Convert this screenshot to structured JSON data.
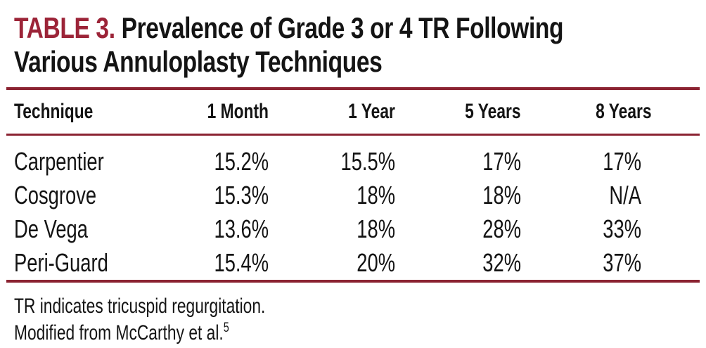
{
  "colors": {
    "accent_text": "#9c2438",
    "rule": "#8b2332",
    "body_text": "#141414",
    "background": "#ffffff"
  },
  "title": {
    "label": "TABLE 3.",
    "line1": "Prevalence of Grade 3 or 4 TR Following",
    "line2": "Various Annuloplasty Techniques"
  },
  "table": {
    "columns": [
      "Technique",
      "1 Month",
      "1 Year",
      "5 Years",
      "8 Years"
    ],
    "rows": [
      {
        "technique": "Carpentier",
        "values": [
          "15.2%",
          "15.5%",
          "17%",
          "17%"
        ]
      },
      {
        "technique": "Cosgrove",
        "values": [
          "15.3%",
          "18%",
          "18%",
          "N/A"
        ]
      },
      {
        "technique": "De Vega",
        "values": [
          "13.6%",
          "18%",
          "28%",
          "33%"
        ]
      },
      {
        "technique": "Peri-Guard",
        "values": [
          "15.4%",
          "20%",
          "32%",
          "37%"
        ]
      }
    ]
  },
  "footnotes": {
    "line1": "TR indicates tricuspid regurgitation.",
    "line2_text": "Modified from McCarthy et al.",
    "line2_superscript": "5"
  }
}
